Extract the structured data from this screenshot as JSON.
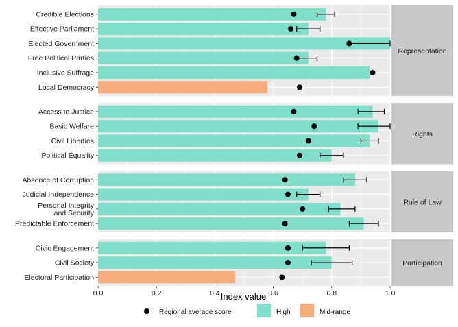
{
  "chart_data": {
    "type": "bar",
    "orientation": "horizontal",
    "xlabel": "Index value",
    "ylabel": "",
    "xlim": [
      0,
      1.0
    ],
    "x_ticks": [
      "0.0",
      "0.2",
      "0.4",
      "0.6",
      "0.8",
      "1.0"
    ],
    "colors": {
      "High": "#7fdfca",
      "Mid-range": "#f6ad7b",
      "point": "#000000",
      "strip": "#c9c9c9",
      "panel_bg": "#ebebeb"
    },
    "legend": {
      "position": "bottom",
      "point_label": "Regional average score",
      "items": [
        "High",
        "Mid-range"
      ]
    },
    "panels": [
      {
        "name": "Representation",
        "items": [
          {
            "label": "Credible Elections",
            "value": 0.78,
            "category": "High",
            "avg": 0.67,
            "err_low": 0.75,
            "err_high": 0.81
          },
          {
            "label": "Effective Parliament",
            "value": 0.72,
            "category": "High",
            "avg": 0.66,
            "err_low": 0.68,
            "err_high": 0.76
          },
          {
            "label": "Elected Government",
            "value": 1.0,
            "category": "High",
            "avg": 0.86,
            "err_low": 0.86,
            "err_high": 1.0
          },
          {
            "label": "Free Political Parties",
            "value": 0.72,
            "category": "High",
            "avg": 0.68,
            "err_low": 0.68,
            "err_high": 0.75
          },
          {
            "label": "Inclusive Suffrage",
            "value": 0.93,
            "category": "High",
            "avg": 0.94,
            "err_low": null,
            "err_high": null
          },
          {
            "label": "Local Democracy",
            "value": 0.58,
            "category": "Mid-range",
            "avg": 0.69,
            "err_low": null,
            "err_high": null
          }
        ]
      },
      {
        "name": "Rights",
        "items": [
          {
            "label": "Access to Justice",
            "value": 0.94,
            "category": "High",
            "avg": 0.67,
            "err_low": 0.89,
            "err_high": 0.98
          },
          {
            "label": "Basic Welfare",
            "value": 0.96,
            "category": "High",
            "avg": 0.74,
            "err_low": 0.89,
            "err_high": 1.0
          },
          {
            "label": "Civil Liberties",
            "value": 0.93,
            "category": "High",
            "avg": 0.72,
            "err_low": 0.9,
            "err_high": 0.96
          },
          {
            "label": "Political Equality",
            "value": 0.8,
            "category": "High",
            "avg": 0.69,
            "err_low": 0.76,
            "err_high": 0.84
          }
        ]
      },
      {
        "name": "Rule of Law",
        "items": [
          {
            "label": "Absence of Corruption",
            "value": 0.88,
            "category": "High",
            "avg": 0.64,
            "err_low": 0.84,
            "err_high": 0.92
          },
          {
            "label": "Judicial Independence",
            "value": 0.72,
            "category": "High",
            "avg": 0.65,
            "err_low": 0.68,
            "err_high": 0.76
          },
          {
            "label": "Personal Integrity and Security",
            "value": 0.83,
            "category": "High",
            "avg": 0.7,
            "err_low": 0.79,
            "err_high": 0.88
          },
          {
            "label": "Predictable Enforcement",
            "value": 0.91,
            "category": "High",
            "avg": 0.64,
            "err_low": 0.86,
            "err_high": 0.96
          }
        ]
      },
      {
        "name": "Participation",
        "items": [
          {
            "label": "Civic Engagement",
            "value": 0.78,
            "category": "High",
            "avg": 0.65,
            "err_low": 0.7,
            "err_high": 0.86
          },
          {
            "label": "Civil Society",
            "value": 0.8,
            "category": "High",
            "avg": 0.65,
            "err_low": 0.73,
            "err_high": 0.87
          },
          {
            "label": "Electoral Participation",
            "value": 0.47,
            "category": "Mid-range",
            "avg": 0.63,
            "err_low": null,
            "err_high": null
          }
        ]
      }
    ]
  }
}
